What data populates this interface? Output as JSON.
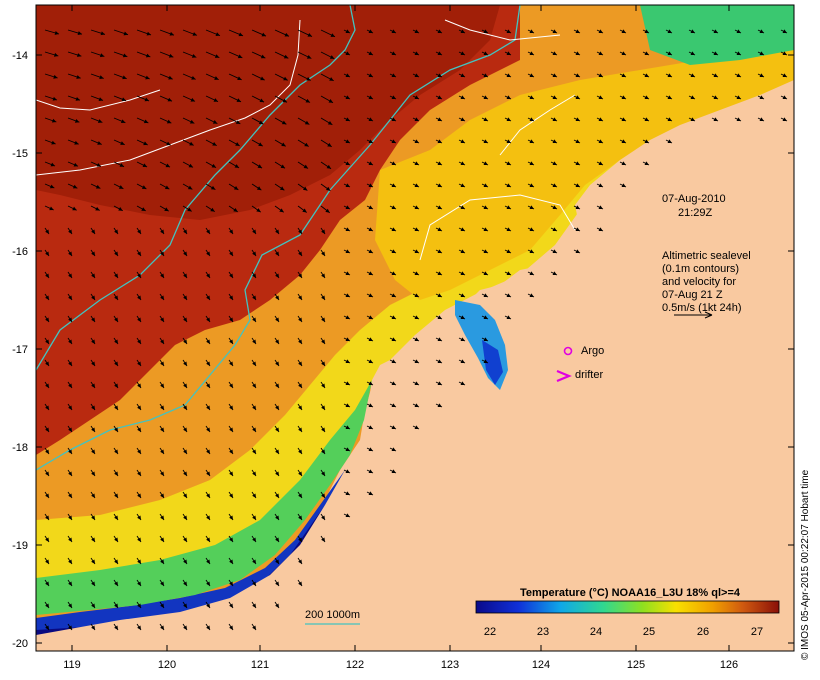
{
  "map": {
    "x_ticks": [
      "119",
      "120",
      "121",
      "122",
      "123",
      "124",
      "125",
      "126"
    ],
    "y_ticks": [
      "-14",
      "-15",
      "-16",
      "-17",
      "-18",
      "-19",
      "-20"
    ],
    "date_line1": "07-Aug-2010",
    "date_line2": "21:29Z",
    "altimetry_note": [
      "Altimetric sealevel",
      "(0.1m contours)",
      "and velocity for",
      "07-Aug 21 Z",
      "0.5m/s (1kt 24h)"
    ],
    "argo_label": "Argo",
    "drifter_label": "drifter",
    "isobath_label": "200  1000m",
    "colorbar_title": "Temperature (°C) NOAA16_L3U 18% ql>=4",
    "colorbar_ticks": [
      "22",
      "23",
      "24",
      "25",
      "26",
      "27"
    ],
    "credit": "© IMOS 05-Apr-2015 00:22:07 Hobart time",
    "colors": {
      "land": "#f9c9a0",
      "warm": "#b92a10",
      "cool": "#0a1a9c",
      "isobath": "#43c3c0",
      "argo": "#e000e0"
    }
  }
}
